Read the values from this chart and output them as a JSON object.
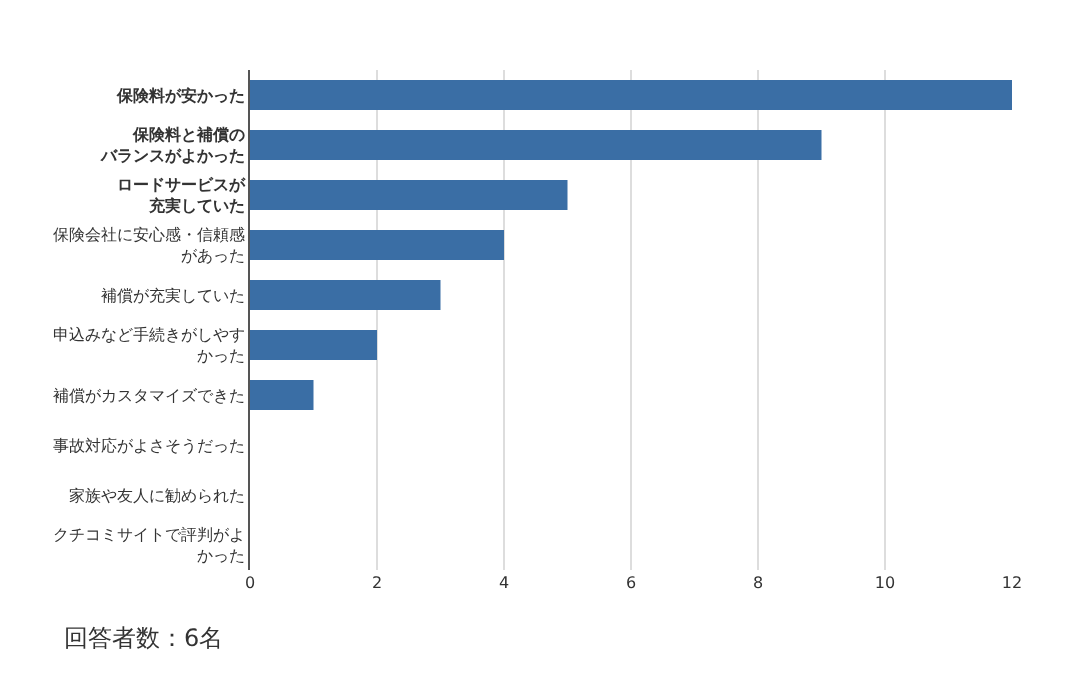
{
  "chart_data": {
    "type": "bar",
    "orientation": "horizontal",
    "categories": [
      "保険料が安かった",
      "保険料と補償のバランスがよかった",
      "ロードサービスが充実していた",
      "保険会社に安心感・信頼感があった",
      "補償が充実していた",
      "申込みなど手続きがしやすかった",
      "補償がカスタマイズできた",
      "事故対応がよさそうだった",
      "家族や友人に勧められた",
      "クチコミサイトで評判がよかった"
    ],
    "values": [
      12,
      9,
      5,
      4,
      3,
      2,
      1,
      0,
      0,
      0
    ],
    "color": "#3a6ea5",
    "xlim": [
      0,
      12
    ],
    "xticks": [
      0,
      2,
      4,
      6,
      8,
      10,
      12
    ],
    "grid": "x",
    "annotations": [
      "回答者数：6名"
    ]
  }
}
